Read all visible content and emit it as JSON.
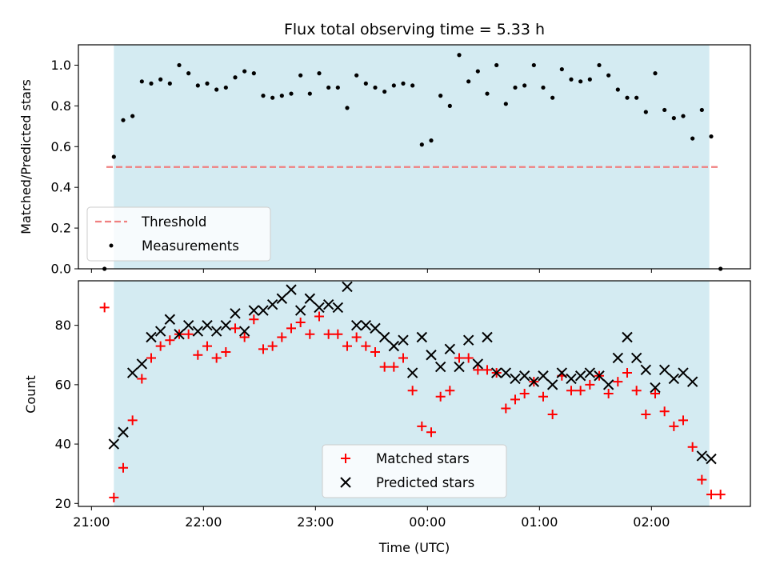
{
  "chart_data": [
    {
      "type": "scatter",
      "title": "Flux total observing time = 5.33 h",
      "xlabel": "",
      "ylabel": "Matched/Predicted stars",
      "ylim": [
        0,
        1.1
      ],
      "yticks": [
        "0.0",
        "0.2",
        "0.4",
        "0.6",
        "0.8",
        "1.0"
      ],
      "shaded_span": [
        "21:12",
        "02:31"
      ],
      "shade_color": "#add8e6",
      "legend_position": "lower left",
      "series": [
        {
          "name": "Threshold",
          "kind": "dashed-line",
          "color": "#f08080",
          "x": [
            "21:08",
            "02:37"
          ],
          "y": [
            0.5,
            0.5
          ]
        },
        {
          "name": "Measurements",
          "kind": "dot",
          "color": "#000000",
          "x": [
            "21:07",
            "21:12",
            "21:17",
            "21:22",
            "21:27",
            "21:32",
            "21:37",
            "21:42",
            "21:47",
            "21:52",
            "21:57",
            "22:02",
            "22:07",
            "22:12",
            "22:17",
            "22:22",
            "22:27",
            "22:32",
            "22:37",
            "22:42",
            "22:47",
            "22:52",
            "22:57",
            "23:02",
            "23:07",
            "23:12",
            "23:17",
            "23:22",
            "23:27",
            "23:32",
            "23:37",
            "23:42",
            "23:47",
            "23:52",
            "23:57",
            "00:02",
            "00:07",
            "00:12",
            "00:17",
            "00:22",
            "00:27",
            "00:32",
            "00:37",
            "00:42",
            "00:47",
            "00:52",
            "00:57",
            "01:02",
            "01:07",
            "01:12",
            "01:17",
            "01:22",
            "01:27",
            "01:32",
            "01:37",
            "01:42",
            "01:47",
            "01:52",
            "01:57",
            "02:02",
            "02:07",
            "02:12",
            "02:17",
            "02:22",
            "02:27",
            "02:32",
            "02:37"
          ],
          "y": [
            0.0,
            0.55,
            0.73,
            0.75,
            0.92,
            0.91,
            0.93,
            0.91,
            1.0,
            0.96,
            0.9,
            0.91,
            0.88,
            0.89,
            0.94,
            0.97,
            0.96,
            0.85,
            0.84,
            0.85,
            0.86,
            0.95,
            0.86,
            0.96,
            0.89,
            0.89,
            0.79,
            0.95,
            0.91,
            0.89,
            0.87,
            0.9,
            0.91,
            0.9,
            0.61,
            0.63,
            0.85,
            0.8,
            1.05,
            0.92,
            0.97,
            0.86,
            1.0,
            0.81,
            0.89,
            0.9,
            1.0,
            0.89,
            0.84,
            0.98,
            0.93,
            0.92,
            0.93,
            1.0,
            0.95,
            0.88,
            0.84,
            0.84,
            0.77,
            0.96,
            0.78,
            0.74,
            0.75,
            0.64,
            0.78,
            0.65,
            0.0
          ]
        }
      ]
    },
    {
      "type": "scatter",
      "title": "",
      "xlabel": "Time (UTC)",
      "ylabel": "Count",
      "ylim": [
        19,
        95
      ],
      "yticks": [
        "20",
        "40",
        "60",
        "80"
      ],
      "xticks": [
        "21:00",
        "22:00",
        "23:00",
        "00:00",
        "01:00",
        "02:00"
      ],
      "xlim": [
        "20:53",
        "02:53"
      ],
      "shaded_span": [
        "21:12",
        "02:31"
      ],
      "shade_color": "#add8e6",
      "legend_position": "lower center",
      "series": [
        {
          "name": "Matched stars",
          "marker": "plus",
          "color": "#ff0000",
          "x": [
            "21:07",
            "21:12",
            "21:17",
            "21:22",
            "21:27",
            "21:32",
            "21:37",
            "21:42",
            "21:47",
            "21:52",
            "21:57",
            "22:02",
            "22:07",
            "22:12",
            "22:17",
            "22:22",
            "22:27",
            "22:32",
            "22:37",
            "22:42",
            "22:47",
            "22:52",
            "22:57",
            "23:02",
            "23:07",
            "23:12",
            "23:17",
            "23:22",
            "23:27",
            "23:32",
            "23:37",
            "23:42",
            "23:47",
            "23:52",
            "23:57",
            "00:02",
            "00:07",
            "00:12",
            "00:17",
            "00:22",
            "00:27",
            "00:32",
            "00:37",
            "00:42",
            "00:47",
            "00:52",
            "00:57",
            "01:02",
            "01:07",
            "01:12",
            "01:17",
            "01:22",
            "01:27",
            "01:32",
            "01:37",
            "01:42",
            "01:47",
            "01:52",
            "01:57",
            "02:02",
            "02:07",
            "02:12",
            "02:17",
            "02:22",
            "02:27",
            "02:32",
            "02:37"
          ],
          "y": [
            86,
            22,
            32,
            48,
            62,
            69,
            73,
            75,
            77,
            77,
            70,
            73,
            69,
            71,
            79,
            76,
            82,
            72,
            73,
            76,
            79,
            81,
            77,
            83,
            77,
            77,
            73,
            76,
            73,
            71,
            66,
            66,
            69,
            58,
            46,
            44,
            56,
            58,
            69,
            69,
            65,
            65,
            64,
            52,
            55,
            57,
            61,
            56,
            50,
            63,
            58,
            58,
            60,
            63,
            57,
            61,
            64,
            58,
            50,
            57,
            51,
            46,
            48,
            39,
            28,
            23,
            23
          ]
        },
        {
          "name": "Predicted stars",
          "marker": "x",
          "color": "#000000",
          "x": [
            "21:12",
            "21:17",
            "21:22",
            "21:27",
            "21:32",
            "21:37",
            "21:42",
            "21:47",
            "21:52",
            "21:57",
            "22:02",
            "22:07",
            "22:12",
            "22:17",
            "22:22",
            "22:27",
            "22:32",
            "22:37",
            "22:42",
            "22:47",
            "22:52",
            "22:57",
            "23:02",
            "23:07",
            "23:12",
            "23:17",
            "23:22",
            "23:27",
            "23:32",
            "23:37",
            "23:42",
            "23:47",
            "23:52",
            "23:57",
            "00:02",
            "00:07",
            "00:12",
            "00:17",
            "00:22",
            "00:27",
            "00:32",
            "00:37",
            "00:42",
            "00:47",
            "00:52",
            "00:57",
            "01:02",
            "01:07",
            "01:12",
            "01:17",
            "01:22",
            "01:27",
            "01:32",
            "01:37",
            "01:42",
            "01:47",
            "01:52",
            "01:57",
            "02:02",
            "02:07",
            "02:12",
            "02:17",
            "02:22",
            "02:27",
            "02:32"
          ],
          "y": [
            40,
            44,
            64,
            67,
            76,
            78,
            82,
            77,
            80,
            78,
            80,
            78,
            80,
            84,
            78,
            85,
            85,
            87,
            89,
            92,
            85,
            89,
            86,
            87,
            86,
            93,
            80,
            80,
            79,
            76,
            73,
            75,
            64,
            76,
            70,
            66,
            72,
            66,
            75,
            67,
            76,
            64,
            64,
            62,
            63,
            61,
            63,
            60,
            64,
            62,
            63,
            64,
            63,
            60,
            69,
            76,
            69,
            65,
            59,
            65,
            62,
            64,
            61,
            36,
            35
          ]
        }
      ]
    }
  ]
}
